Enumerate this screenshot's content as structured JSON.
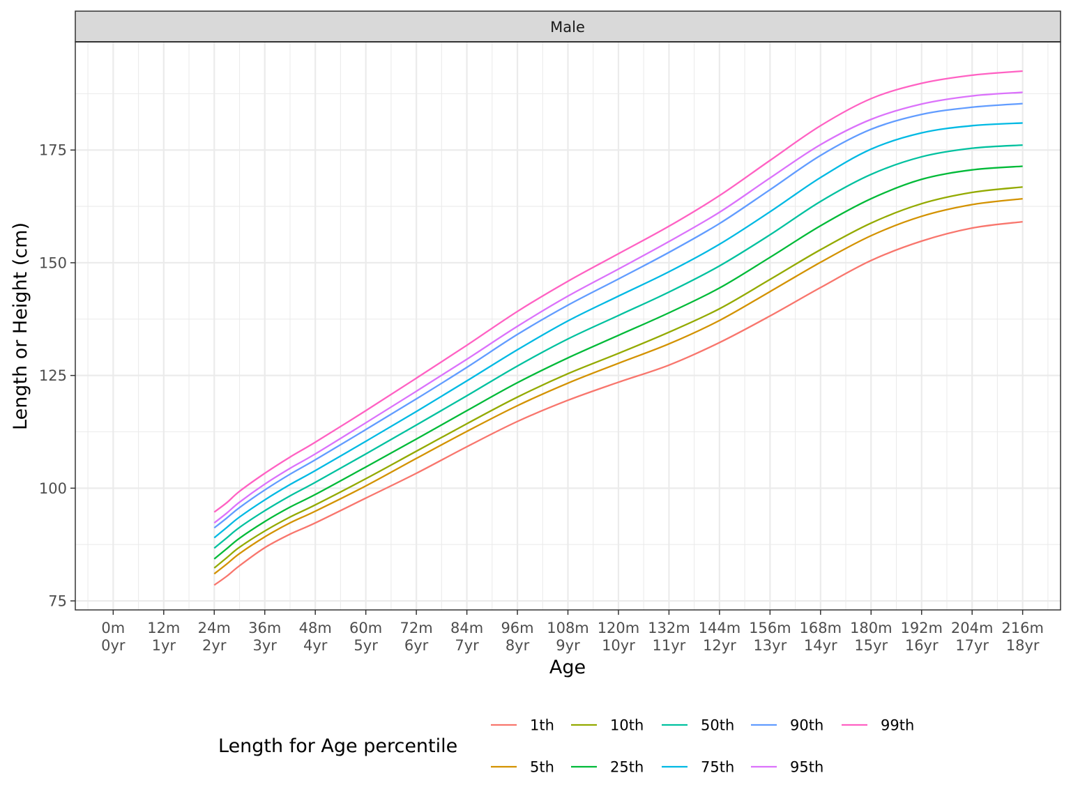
{
  "chart_data": {
    "type": "line",
    "facet": "Male",
    "xlabel": "Age",
    "ylabel": "Length or Height (cm)",
    "xlim": [
      -9,
      225
    ],
    "ylim": [
      73,
      199
    ],
    "x_ticks": [
      0,
      12,
      24,
      36,
      48,
      60,
      72,
      84,
      96,
      108,
      120,
      132,
      144,
      156,
      168,
      180,
      192,
      204,
      216
    ],
    "x_tick_labels": [
      {
        "months": "0m",
        "years": "0yr"
      },
      {
        "months": "12m",
        "years": "1yr"
      },
      {
        "months": "24m",
        "years": "2yr"
      },
      {
        "months": "36m",
        "years": "3yr"
      },
      {
        "months": "48m",
        "years": "4yr"
      },
      {
        "months": "60m",
        "years": "5yr"
      },
      {
        "months": "72m",
        "years": "6yr"
      },
      {
        "months": "84m",
        "years": "7yr"
      },
      {
        "months": "96m",
        "years": "8yr"
      },
      {
        "months": "108m",
        "years": "9yr"
      },
      {
        "months": "120m",
        "years": "10yr"
      },
      {
        "months": "132m",
        "years": "11yr"
      },
      {
        "months": "144m",
        "years": "12yr"
      },
      {
        "months": "156m",
        "years": "13yr"
      },
      {
        "months": "168m",
        "years": "14yr"
      },
      {
        "months": "180m",
        "years": "15yr"
      },
      {
        "months": "192m",
        "years": "16yr"
      },
      {
        "months": "204m",
        "years": "17yr"
      },
      {
        "months": "216m",
        "years": "18yr"
      }
    ],
    "y_ticks": [
      75,
      100,
      125,
      150,
      175
    ],
    "grid": true,
    "legend": {
      "title": "Length for Age percentile",
      "position": "bottom"
    },
    "x": [
      24,
      27,
      30,
      36,
      42,
      48,
      60,
      72,
      84,
      96,
      108,
      120,
      132,
      144,
      156,
      168,
      180,
      192,
      204,
      216
    ],
    "series": [
      {
        "name": "1th",
        "color": "#F8766D",
        "values": [
          78.5,
          80.5,
          82.8,
          86.8,
          89.8,
          92.3,
          97.8,
          103.3,
          109.2,
          114.8,
          119.5,
          123.5,
          127.3,
          132.3,
          138.2,
          144.5,
          150.5,
          154.8,
          157.7,
          159.1
        ]
      },
      {
        "name": "5th",
        "color": "#D39200",
        "values": [
          81.0,
          83.2,
          85.5,
          89.2,
          92.3,
          94.9,
          100.5,
          106.6,
          112.6,
          118.3,
          123.3,
          127.7,
          132.0,
          137.2,
          143.6,
          150.1,
          156.0,
          160.3,
          162.9,
          164.2
        ]
      },
      {
        "name": "10th",
        "color": "#93AA00",
        "values": [
          82.3,
          84.6,
          86.9,
          90.5,
          93.6,
          96.3,
          102.1,
          108.2,
          114.3,
          120.2,
          125.4,
          129.9,
          134.6,
          139.8,
          146.3,
          152.9,
          158.8,
          163.1,
          165.6,
          166.8
        ]
      },
      {
        "name": "25th",
        "color": "#00BA38",
        "values": [
          84.3,
          86.6,
          88.9,
          92.6,
          95.8,
          98.6,
          104.7,
          110.9,
          117.2,
          123.4,
          128.9,
          133.9,
          138.9,
          144.4,
          151.2,
          158.2,
          164.2,
          168.5,
          170.6,
          171.4
        ]
      },
      {
        "name": "50th",
        "color": "#00C19F",
        "values": [
          86.7,
          89.0,
          91.3,
          95.0,
          98.3,
          101.3,
          107.6,
          114.0,
          120.5,
          127.1,
          133.1,
          138.3,
          143.5,
          149.3,
          156.2,
          163.6,
          169.6,
          173.5,
          175.4,
          176.1
        ]
      },
      {
        "name": "75th",
        "color": "#00B9E3",
        "values": [
          89.0,
          91.3,
          93.6,
          97.4,
          100.8,
          103.9,
          110.4,
          117.0,
          123.8,
          130.7,
          137.1,
          142.6,
          148.0,
          154.1,
          161.3,
          168.9,
          175.2,
          178.8,
          180.4,
          181.0
        ]
      },
      {
        "name": "90th",
        "color": "#619CFF",
        "values": [
          91.2,
          93.4,
          95.7,
          99.6,
          103.1,
          106.3,
          113.0,
          119.8,
          126.8,
          134.1,
          140.6,
          146.4,
          152.3,
          158.7,
          166.2,
          173.8,
          179.6,
          182.9,
          184.5,
          185.3
        ]
      },
      {
        "name": "95th",
        "color": "#DB72FB",
        "values": [
          92.3,
          94.5,
          96.9,
          100.9,
          104.4,
          107.6,
          114.5,
          121.5,
          128.6,
          135.9,
          142.6,
          148.6,
          154.7,
          161.2,
          168.8,
          176.2,
          181.8,
          185.2,
          187.0,
          187.8
        ]
      },
      {
        "name": "99th",
        "color": "#FF61C3",
        "values": [
          94.7,
          96.8,
          99.3,
          103.3,
          106.9,
          110.2,
          117.2,
          124.4,
          131.7,
          139.2,
          145.9,
          152.0,
          158.1,
          164.9,
          172.7,
          180.4,
          186.4,
          189.8,
          191.6,
          192.5
        ]
      }
    ]
  }
}
